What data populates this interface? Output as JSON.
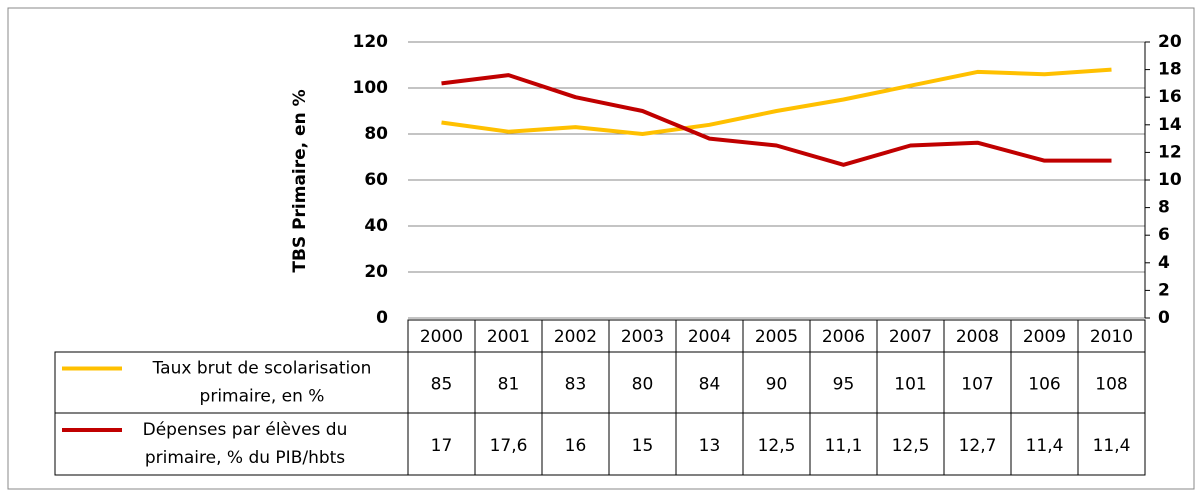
{
  "chart_data": {
    "type": "line",
    "ylabel": "TBS Primaire, en %",
    "categories": [
      "2000",
      "2001",
      "2002",
      "2003",
      "2004",
      "2005",
      "2006",
      "2007",
      "2008",
      "2009",
      "2010"
    ],
    "series": [
      {
        "name": "Taux brut de scolarisation primaire, en %",
        "color": "#ffc000",
        "values": [
          85,
          81,
          83,
          80,
          84,
          90,
          95,
          101,
          107,
          106,
          108
        ]
      },
      {
        "name": "Dépenses par élèves du primaire, % du PIB/hbts",
        "color": "#c00000",
        "axis": "y2",
        "values": [
          17,
          17.6,
          16,
          15,
          13,
          12.5,
          11.1,
          12.5,
          12.7,
          11.4,
          11.4
        ],
        "value_labels": [
          "17",
          "17,6",
          "16",
          "15",
          "13",
          "12,5",
          "11,1",
          "12,5",
          "12,7",
          "11,4",
          "11,4"
        ]
      }
    ],
    "ylim": [
      0,
      120
    ],
    "yticks": [
      0,
      20,
      40,
      60,
      80,
      100,
      120
    ],
    "y2lim": [
      0,
      20
    ],
    "y2ticks": [
      0,
      2,
      4,
      6,
      8,
      10,
      12,
      14,
      16,
      18,
      20
    ],
    "grid": true
  }
}
